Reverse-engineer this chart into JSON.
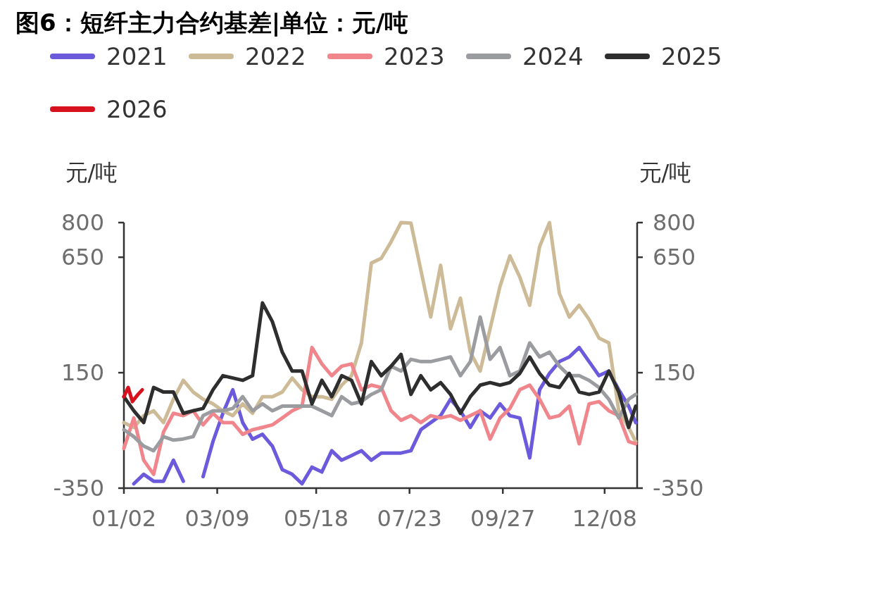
{
  "chart_data": {
    "type": "line",
    "title": "图6：短纤主力合约基差|单位：元/吨",
    "ylabel": "元/吨",
    "y2label": "元/吨",
    "legend": "top",
    "x": [
      "--01-02",
      "--01-09",
      "--01-16",
      "--01-23",
      "--01-30",
      "--02-06",
      "--02-13",
      "--02-20",
      "--02-27",
      "--03-06",
      "--03-13",
      "--03-20",
      "--03-27",
      "--04-03",
      "--04-10",
      "--04-17",
      "--04-24",
      "--05-01",
      "--05-08",
      "--05-15",
      "--05-22",
      "--05-29",
      "--06-05",
      "--06-12",
      "--06-19",
      "--06-26",
      "--07-03",
      "--07-10",
      "--07-17",
      "--07-24",
      "--07-31",
      "--08-07",
      "--08-14",
      "--08-21",
      "--08-28",
      "--09-04",
      "--09-11",
      "--09-18",
      "--09-25",
      "--10-02",
      "--10-09",
      "--10-16",
      "--10-23",
      "--10-30",
      "--11-06",
      "--11-13",
      "--11-20",
      "--11-27",
      "--12-04",
      "--12-11",
      "--12-18",
      "--12-25",
      "--12-30"
    ],
    "xlim": [
      "--01-02",
      "--12-31"
    ],
    "xticks": [
      {
        "value": "--01-02",
        "label": "01/02"
      },
      {
        "value": "--03-09",
        "label": "03/09"
      },
      {
        "value": "--05-18",
        "label": "05/18"
      },
      {
        "value": "--07-23",
        "label": "07/23"
      },
      {
        "value": "--09-27",
        "label": "09/27"
      },
      {
        "value": "--12-08",
        "label": "12/08"
      }
    ],
    "ylim": [
      -350,
      800
    ],
    "yticks": [
      -350,
      150,
      650,
      800
    ],
    "y2lim": [
      -350,
      800
    ],
    "y2ticks": [
      -350,
      150,
      650,
      800
    ],
    "series": [
      {
        "name": "2021",
        "color": "#6b5bdc",
        "values": [
          null,
          -331,
          -290,
          -320,
          -320,
          -229,
          -320,
          null,
          -300,
          -148,
          -26,
          76,
          -66,
          -138,
          -117,
          -168,
          -270,
          -290,
          -331,
          -259,
          -280,
          -188,
          -229,
          -209,
          -188,
          -229,
          -198,
          -198,
          -198,
          -188,
          -97,
          -66,
          -36,
          35,
          -15,
          -87,
          -15,
          -46,
          15,
          -36,
          -46,
          -219,
          76,
          147,
          198,
          218,
          259,
          198,
          137,
          157,
          76,
          5,
          -66
        ]
      },
      {
        "name": "2022",
        "color": "#cdbb98",
        "values": [
          -66,
          -87,
          -36,
          -15,
          -66,
          35,
          117,
          66,
          35,
          15,
          -15,
          -36,
          15,
          -26,
          46,
          46,
          66,
          127,
          76,
          46,
          46,
          35,
          96,
          137,
          279,
          625,
          645,
          717,
          800,
          798,
          595,
          391,
          615,
          340,
          473,
          239,
          157,
          340,
          524,
          656,
          564,
          442,
          696,
          800,
          493,
          391,
          442,
          381,
          300,
          279,
          -15,
          -87,
          -148
        ]
      },
      {
        "name": "2023",
        "color": "#f0868c",
        "values": [
          -178,
          -46,
          -229,
          -290,
          -107,
          -26,
          -36,
          -15,
          -76,
          -26,
          -66,
          -66,
          -117,
          -97,
          -87,
          -76,
          -46,
          -15,
          5,
          259,
          188,
          137,
          178,
          188,
          76,
          96,
          86,
          -15,
          -56,
          -36,
          -66,
          -36,
          -46,
          -36,
          -56,
          -36,
          -15,
          -138,
          -46,
          -5,
          76,
          96,
          35,
          -46,
          -36,
          5,
          -158,
          15,
          25,
          -15,
          -36,
          -148,
          -158
        ]
      },
      {
        "name": "2024",
        "color": "#9a9ca0",
        "values": [
          -97,
          -127,
          -168,
          -188,
          -127,
          -142,
          -137,
          -127,
          -36,
          -15,
          -15,
          -5,
          46,
          -15,
          15,
          -15,
          5,
          5,
          5,
          5,
          -15,
          -36,
          46,
          15,
          25,
          56,
          76,
          178,
          157,
          208,
          198,
          198,
          208,
          218,
          137,
          198,
          391,
          208,
          259,
          137,
          157,
          279,
          218,
          239,
          178,
          137,
          137,
          117,
          86,
          35,
          -46,
          35,
          56
        ]
      },
      {
        "name": "2025",
        "color": "#2e2e2e",
        "values": [
          46,
          -15,
          -66,
          86,
          66,
          66,
          -26,
          -15,
          -5,
          76,
          137,
          127,
          117,
          137,
          452,
          371,
          239,
          157,
          157,
          15,
          117,
          46,
          137,
          117,
          15,
          198,
          137,
          178,
          229,
          56,
          137,
          76,
          107,
          56,
          -26,
          46,
          96,
          107,
          96,
          107,
          147,
          218,
          147,
          96,
          86,
          147,
          66,
          56,
          66,
          157,
          66,
          -87,
          5
        ]
      },
      {
        "name": "2026",
        "color": "#d7121e",
        "x": [
          "--01-02",
          "--01-05",
          "--01-08",
          "--01-12",
          "--01-15"
        ],
        "values": [
          46,
          86,
          25,
          56,
          76
        ]
      }
    ]
  }
}
